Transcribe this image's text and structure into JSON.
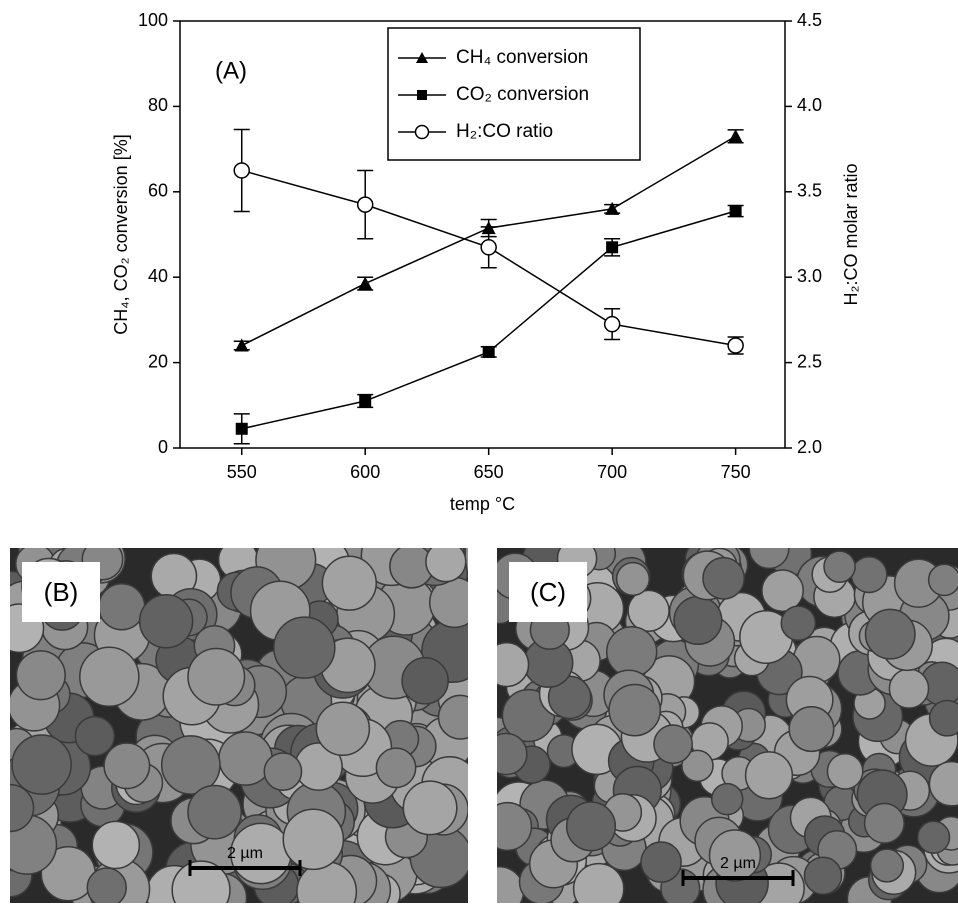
{
  "chart_data": {
    "type": "line",
    "annotation": "(A)",
    "x_label": "temp °C",
    "y_label": "CH₄, CO₂ conversion [%]",
    "y2_label": "H₂:CO molar ratio",
    "x": [
      550,
      600,
      650,
      700,
      750
    ],
    "xlim": [
      525,
      770
    ],
    "xticks": [
      550,
      600,
      650,
      700,
      750
    ],
    "ylim": [
      0,
      100
    ],
    "yticks": [
      0,
      20,
      40,
      60,
      80,
      100
    ],
    "y2lim": [
      2.0,
      4.5
    ],
    "y2ticks": [
      {
        "value": 2.0,
        "label": "2.0"
      },
      2.5,
      {
        "value": 3.0,
        "label": "3.0"
      },
      3.5,
      {
        "value": 4.0,
        "label": "4.0"
      },
      4.5
    ],
    "grid": false,
    "series": [
      {
        "name": "CH₄ conversion",
        "color": "#000000",
        "marker": "triangle",
        "values": [
          24,
          38.5,
          51.5,
          56,
          73
        ],
        "errors": [
          1,
          1.5,
          2,
          1,
          1.5
        ]
      },
      {
        "name": "CO₂ conversion",
        "color": "#000000",
        "marker": "square",
        "values": [
          4.5,
          11,
          22.5,
          47,
          55.5
        ],
        "errors": [
          3.5,
          1.5,
          1.2,
          2,
          1.3
        ]
      },
      {
        "name": "H₂:CO ratio",
        "color": "#000000",
        "marker": "open-circle",
        "axis": "y2",
        "values": [
          3.625,
          3.425,
          3.175,
          2.725,
          2.6
        ],
        "errors": [
          0.24,
          0.2,
          0.12,
          0.09,
          0.05
        ]
      }
    ]
  },
  "panels": [
    {
      "label": "(B)",
      "scale_bar": "2 µm"
    },
    {
      "label": "(C)",
      "scale_bar": "2 µm"
    }
  ]
}
